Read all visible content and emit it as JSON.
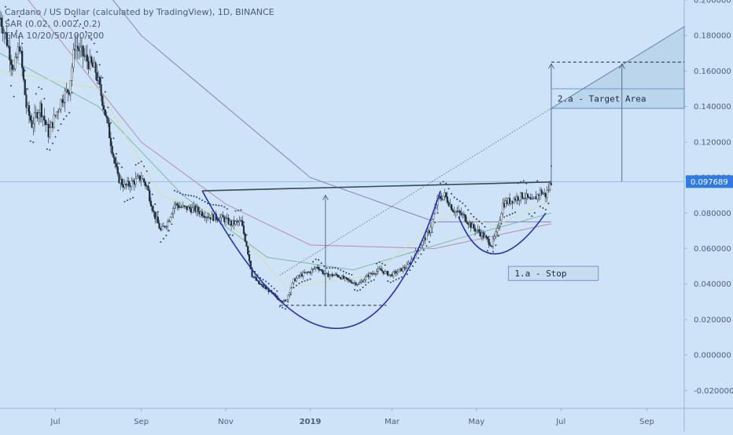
{
  "legend": {
    "title": "Cardano / US Dollar (calculated by TradingView), 1D, BINANCE",
    "sar": "SAR (0.02, 0.002, 0.2)",
    "ema": "EMA 10/20/50/100/200"
  },
  "chart_data": {
    "type": "candlestick",
    "title": "Cardano / US Dollar (calculated by TradingView), 1D, BINANCE",
    "yaxis": {
      "min": -0.03,
      "max": 0.2,
      "ticks": [
        "0.200000",
        "0.180000",
        "0.160000",
        "0.140000",
        "0.120000",
        "0.100000",
        "0.080000",
        "0.060000",
        "0.040000",
        "0.020000",
        "0.000000",
        "-0.020000"
      ],
      "tick_values": [
        0.2,
        0.18,
        0.16,
        0.14,
        0.12,
        0.1,
        0.08,
        0.06,
        0.04,
        0.02,
        0.0,
        -0.02
      ]
    },
    "xaxis": {
      "labels": [
        "Jul",
        "Sep",
        "Nov",
        "2019",
        "Mar",
        "May",
        "Jul",
        "Sep"
      ],
      "bold": [
        "2019"
      ],
      "label_dates": [
        "2018-07-01",
        "2018-09-01",
        "2018-11-01",
        "2019-01-01",
        "2019-03-01",
        "2019-05-01",
        "2019-07-01",
        "2019-09-01"
      ],
      "start": "2018-05-22",
      "end": "2019-09-28"
    },
    "last_price": "0.097689",
    "price_path": [
      [
        "2018-05-22",
        0.19
      ],
      [
        "2018-05-26",
        0.18
      ],
      [
        "2018-06-01",
        0.16
      ],
      [
        "2018-06-05",
        0.175
      ],
      [
        "2018-06-10",
        0.14
      ],
      [
        "2018-06-14",
        0.13
      ],
      [
        "2018-06-20",
        0.14
      ],
      [
        "2018-06-26",
        0.125
      ],
      [
        "2018-07-01",
        0.135
      ],
      [
        "2018-07-06",
        0.145
      ],
      [
        "2018-07-11",
        0.15
      ],
      [
        "2018-07-15",
        0.175
      ],
      [
        "2018-07-20",
        0.17
      ],
      [
        "2018-07-25",
        0.165
      ],
      [
        "2018-07-30",
        0.16
      ],
      [
        "2018-08-05",
        0.14
      ],
      [
        "2018-08-10",
        0.12
      ],
      [
        "2018-08-15",
        0.1
      ],
      [
        "2018-08-20",
        0.095
      ],
      [
        "2018-08-25",
        0.097
      ],
      [
        "2018-09-01",
        0.1
      ],
      [
        "2018-09-05",
        0.095
      ],
      [
        "2018-09-10",
        0.08
      ],
      [
        "2018-09-15",
        0.07
      ],
      [
        "2018-09-20",
        0.075
      ],
      [
        "2018-09-25",
        0.085
      ],
      [
        "2018-10-01",
        0.083
      ],
      [
        "2018-10-10",
        0.082
      ],
      [
        "2018-10-20",
        0.078
      ],
      [
        "2018-10-30",
        0.077
      ],
      [
        "2018-11-05",
        0.074
      ],
      [
        "2018-11-12",
        0.075
      ],
      [
        "2018-11-16",
        0.062
      ],
      [
        "2018-11-20",
        0.045
      ],
      [
        "2018-11-25",
        0.04
      ],
      [
        "2018-12-01",
        0.037
      ],
      [
        "2018-12-08",
        0.032
      ],
      [
        "2018-12-14",
        0.03
      ],
      [
        "2018-12-20",
        0.042
      ],
      [
        "2018-12-25",
        0.045
      ],
      [
        "2019-01-01",
        0.047
      ],
      [
        "2019-01-06",
        0.05
      ],
      [
        "2019-01-12",
        0.045
      ],
      [
        "2019-01-20",
        0.045
      ],
      [
        "2019-01-28",
        0.042
      ],
      [
        "2019-02-05",
        0.04
      ],
      [
        "2019-02-12",
        0.045
      ],
      [
        "2019-02-20",
        0.048
      ],
      [
        "2019-02-28",
        0.045
      ],
      [
        "2019-03-05",
        0.047
      ],
      [
        "2019-03-12",
        0.05
      ],
      [
        "2019-03-20",
        0.06
      ],
      [
        "2019-03-28",
        0.07
      ],
      [
        "2019-04-03",
        0.088
      ],
      [
        "2019-04-08",
        0.09
      ],
      [
        "2019-04-14",
        0.082
      ],
      [
        "2019-04-22",
        0.078
      ],
      [
        "2019-04-28",
        0.072
      ],
      [
        "2019-05-05",
        0.068
      ],
      [
        "2019-05-12",
        0.062
      ],
      [
        "2019-05-16",
        0.07
      ],
      [
        "2019-05-20",
        0.085
      ],
      [
        "2019-05-28",
        0.088
      ],
      [
        "2019-06-04",
        0.09
      ],
      [
        "2019-06-10",
        0.086
      ],
      [
        "2019-06-16",
        0.092
      ],
      [
        "2019-06-20",
        0.09
      ],
      [
        "2019-06-24",
        0.0977
      ]
    ],
    "ema_200": [
      [
        "2018-05-22",
        0.28
      ],
      [
        "2018-09-01",
        0.18
      ],
      [
        "2019-01-01",
        0.1
      ],
      [
        "2019-04-01",
        0.075
      ],
      [
        "2019-06-24",
        0.075
      ]
    ],
    "ema_100": [
      [
        "2018-05-22",
        0.22
      ],
      [
        "2018-09-01",
        0.12
      ],
      [
        "2018-11-01",
        0.085
      ],
      [
        "2019-01-01",
        0.062
      ],
      [
        "2019-04-01",
        0.06
      ],
      [
        "2019-06-24",
        0.074
      ]
    ],
    "ema_50": [
      [
        "2018-05-22",
        0.17
      ],
      [
        "2018-08-01",
        0.14
      ],
      [
        "2018-10-01",
        0.09
      ],
      [
        "2018-12-01",
        0.055
      ],
      [
        "2019-02-01",
        0.048
      ],
      [
        "2019-04-15",
        0.065
      ],
      [
        "2019-06-24",
        0.08
      ]
    ],
    "ema_20": [
      [
        "2018-05-22",
        0.16
      ],
      [
        "2018-08-01",
        0.15
      ],
      [
        "2018-09-15",
        0.09
      ],
      [
        "2018-11-01",
        0.077
      ],
      [
        "2018-12-15",
        0.038
      ],
      [
        "2019-02-15",
        0.045
      ],
      [
        "2019-04-10",
        0.08
      ],
      [
        "2019-05-15",
        0.073
      ],
      [
        "2019-06-24",
        0.087
      ]
    ],
    "drawings": {
      "resistance_line": [
        [
          "2018-10-15",
          0.0925
        ],
        [
          "2019-06-24",
          0.0975
        ]
      ],
      "cup_curve": [
        [
          "2018-10-15",
          0.0925
        ],
        [
          "2019-01-20",
          0.015
        ],
        [
          "2019-04-05",
          0.0925
        ]
      ],
      "handle_curve": [
        [
          "2019-04-18",
          0.078
        ],
        [
          "2019-05-15",
          0.057
        ],
        [
          "2019-06-20",
          0.08
        ]
      ],
      "trend_line": [
        [
          "2018-12-10",
          0.045
        ],
        [
          "2019-09-28",
          0.185
        ]
      ],
      "bottom_dashed": [
        [
          "2018-12-10",
          0.028
        ],
        [
          "2019-02-25",
          0.028
        ]
      ],
      "target_dashed": [
        [
          "2019-06-24",
          0.165
        ],
        [
          "2019-09-28",
          0.165
        ]
      ],
      "depth_arrow": [
        [
          "2019-01-12",
          0.028
        ],
        [
          "2019-01-12",
          0.09
        ]
      ],
      "measure_arrow_1": [
        [
          "2019-06-24",
          0.0977
        ],
        [
          "2019-06-24",
          0.164
        ]
      ],
      "measure_arrow_2": [
        [
          "2019-08-14",
          0.0977
        ],
        [
          "2019-08-14",
          0.164
        ]
      ]
    },
    "annotations": [
      {
        "text": "2.a - Target Area",
        "date": "2019-06-24",
        "date_end": "2019-09-28",
        "y_top": 0.15,
        "y_bottom": 0.139
      },
      {
        "text": "1.a - Stop",
        "date": "2019-05-24",
        "date_end": "2019-07-28",
        "y_top": 0.05,
        "y_bottom": 0.042
      }
    ],
    "colors": {
      "background": "#cfe3f8",
      "candle": "#1d2b3a",
      "sar": "#24456e",
      "cup_curve": "#2230b3",
      "price_tag": "#2f7ae5",
      "ema_200": "#8a7fb9",
      "ema_100": "#b88ca7",
      "ema_50": "#7fb9a3",
      "ema_20": "#d7dfa9",
      "target_fill": "#a9cae2"
    }
  }
}
